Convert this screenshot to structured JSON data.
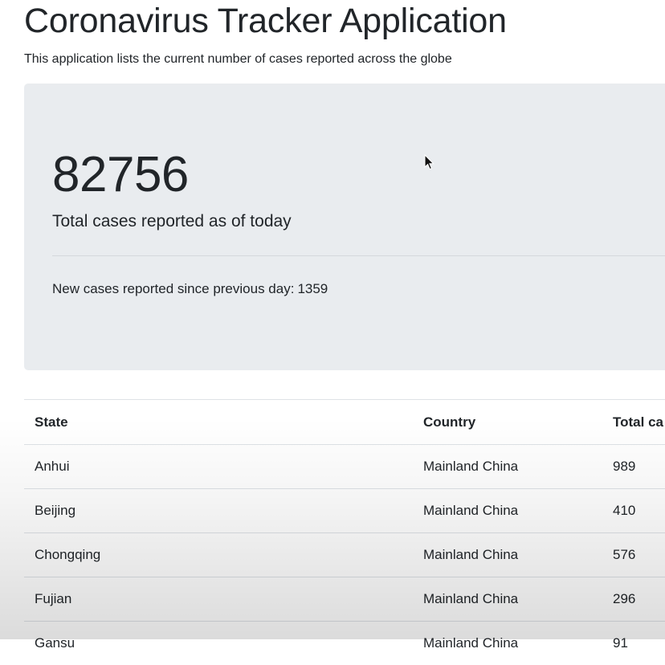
{
  "header": {
    "title": "Coronavirus Tracker Application",
    "subtitle": "This application lists the current number of cases reported across the globe"
  },
  "summary": {
    "total_cases": "82756",
    "total_label": "Total cases reported as of today",
    "new_cases_label": "New cases reported since previous day:",
    "new_cases_value": "1359"
  },
  "table": {
    "headers": [
      "State",
      "Country",
      "Total ca"
    ],
    "rows": [
      {
        "state": "Anhui",
        "country": "Mainland China",
        "total": "989"
      },
      {
        "state": "Beijing",
        "country": "Mainland China",
        "total": "410"
      },
      {
        "state": "Chongqing",
        "country": "Mainland China",
        "total": "576"
      },
      {
        "state": "Fujian",
        "country": "Mainland China",
        "total": "296"
      },
      {
        "state": "Gansu",
        "country": "Mainland China",
        "total": "91"
      }
    ]
  },
  "colors": {
    "jumbotron_bg": "#e9ecef",
    "text": "#212529",
    "border": "#dee2e6"
  },
  "icons": {
    "cursor": "mouse-pointer-icon"
  }
}
